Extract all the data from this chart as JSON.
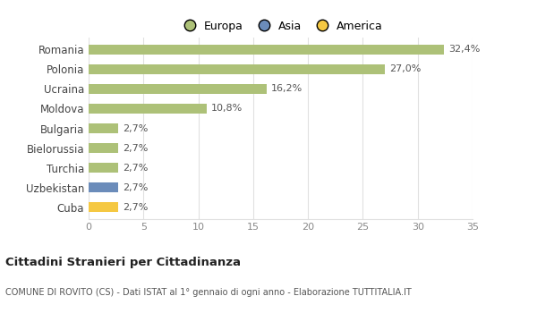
{
  "categories": [
    "Romania",
    "Polonia",
    "Ucraina",
    "Moldova",
    "Bulgaria",
    "Bielorussia",
    "Turchia",
    "Uzbekistan",
    "Cuba"
  ],
  "values": [
    32.4,
    27.0,
    16.2,
    10.8,
    2.7,
    2.7,
    2.7,
    2.7,
    2.7
  ],
  "labels": [
    "32,4%",
    "27,0%",
    "16,2%",
    "10,8%",
    "2,7%",
    "2,7%",
    "2,7%",
    "2,7%",
    "2,7%"
  ],
  "colors": [
    "#adc178",
    "#adc178",
    "#adc178",
    "#adc178",
    "#adc178",
    "#adc178",
    "#adc178",
    "#6b8cba",
    "#f5c842"
  ],
  "legend_labels": [
    "Europa",
    "Asia",
    "America"
  ],
  "legend_colors": [
    "#adc178",
    "#6b8cba",
    "#f5c842"
  ],
  "title": "Cittadini Stranieri per Cittadinanza",
  "subtitle": "COMUNE DI ROVITO (CS) - Dati ISTAT al 1° gennaio di ogni anno - Elaborazione TUTTITALIA.IT",
  "xlim": [
    0,
    35
  ],
  "xticks": [
    0,
    5,
    10,
    15,
    20,
    25,
    30,
    35
  ],
  "background_color": "#ffffff",
  "bar_height": 0.5,
  "grid_color": "#e0e0e0"
}
